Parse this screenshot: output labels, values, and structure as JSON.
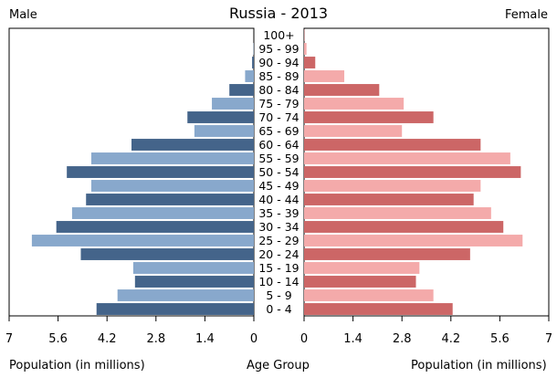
{
  "chart_data": {
    "type": "bar",
    "title": "Russia - 2013",
    "left_label": "Male",
    "right_label": "Female",
    "xlabel_left": "Population (in millions)",
    "xlabel_center": "Age Group",
    "xlabel_right": "Population (in millions)",
    "categories": [
      "0 - 4",
      "5 - 9",
      "10 - 14",
      "15 - 19",
      "20 - 24",
      "25 - 29",
      "30 - 34",
      "35 - 39",
      "40 - 44",
      "45 - 49",
      "50 - 54",
      "55 - 59",
      "60 - 64",
      "65 - 69",
      "70 - 74",
      "75 - 79",
      "80 - 84",
      "85 - 89",
      "90 - 94",
      "95 - 99",
      "100+"
    ],
    "series": [
      {
        "name": "Male",
        "values": [
          4.5,
          3.9,
          3.4,
          3.45,
          4.95,
          6.35,
          5.65,
          5.2,
          4.8,
          4.65,
          5.35,
          4.65,
          3.5,
          1.7,
          1.9,
          1.2,
          0.7,
          0.25,
          0.05,
          0.01,
          0.0
        ]
      },
      {
        "name": "Female",
        "values": [
          4.25,
          3.7,
          3.2,
          3.3,
          4.75,
          6.25,
          5.7,
          5.35,
          4.85,
          5.05,
          6.2,
          5.9,
          5.05,
          2.8,
          3.7,
          2.85,
          2.15,
          1.15,
          0.32,
          0.07,
          0.01
        ]
      }
    ],
    "xlim": [
      0,
      7
    ],
    "ticks": [
      "0",
      "1.4",
      "2.8",
      "4.2",
      "5.6",
      "7"
    ],
    "colors": {
      "male_dark": "#44648a",
      "male_light": "#88a8cc",
      "female_dark": "#cc6666",
      "female_light": "#f4aaaa"
    },
    "grid": false
  }
}
